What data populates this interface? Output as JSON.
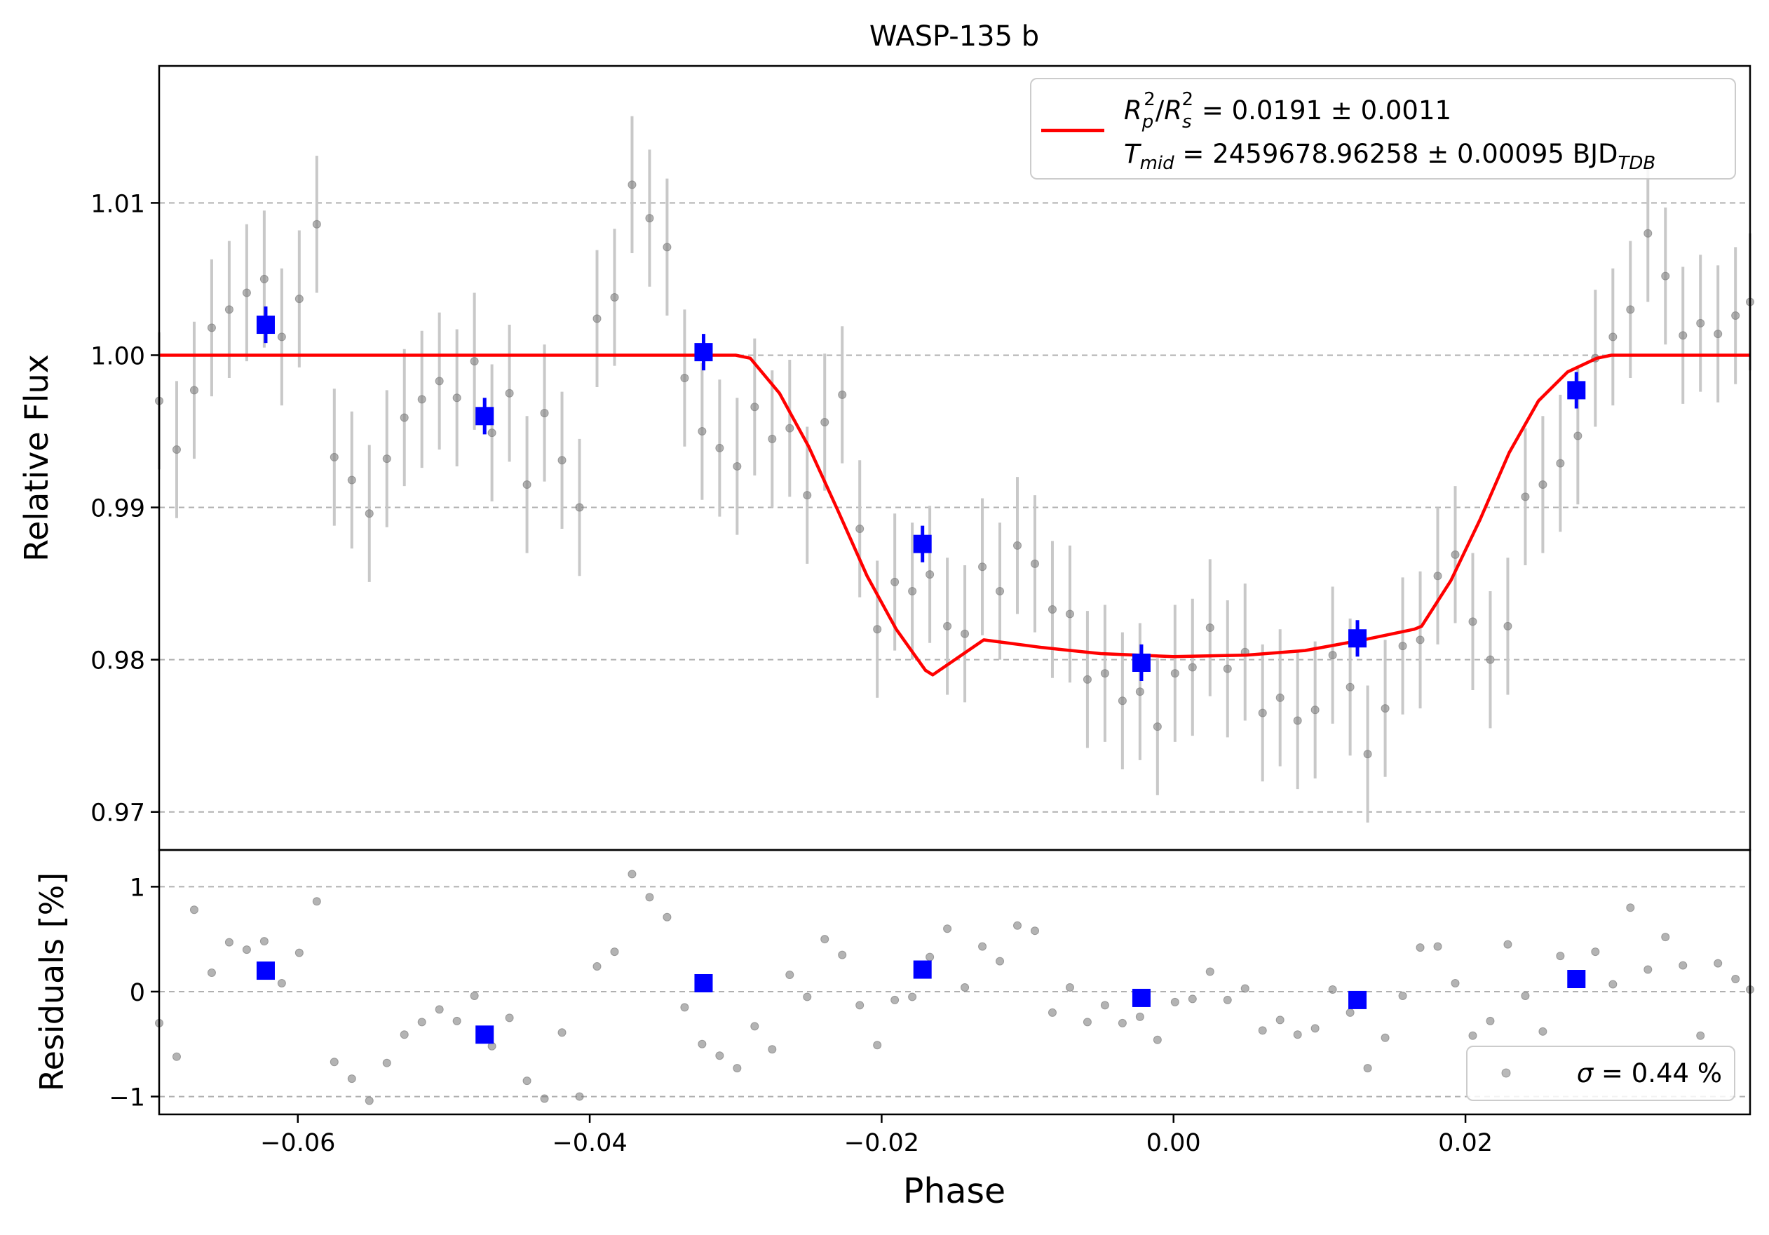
{
  "chart_data": [
    {
      "type": "scatter",
      "title": "WASP-135 b",
      "xlabel": "",
      "ylabel": "Relative Flux",
      "xlim": [
        -0.0695,
        0.0395
      ],
      "ylim": [
        0.9675,
        1.019
      ],
      "y_ticks": [
        0.97,
        0.98,
        0.99,
        1.0,
        1.01
      ],
      "y_tick_labels": [
        "0.97",
        "0.98",
        "0.99",
        "1.00",
        "1.01"
      ],
      "grid": "horizontal dashed",
      "legend": {
        "placement": "upper right",
        "line1": "R_p^2/R_s^2 = 0.0191 ± 0.0011",
        "line2": "T_mid = 2459678.96258 ± 0.00095 BJD_TDB",
        "line1_parts": {
          "a": "R",
          "a_sub": "p",
          "a_sup": "2",
          "slash": "/",
          "b": "R",
          "b_sub": "s",
          "b_sup": "2",
          "rest": " = 0.0191 ± 0.0011"
        },
        "line2_parts": {
          "a": "T",
          "a_sub": "mid",
          "rest": " = 2459678.96258 ± 0.00095 BJD",
          "unit_sub": "TDB"
        }
      },
      "series": [
        {
          "kind": "raw points with error bars",
          "color": "#808080",
          "x": [
            -0.0695,
            -0.0683,
            -0.0671,
            -0.0659,
            -0.0647,
            -0.0635,
            -0.0623,
            -0.0611,
            -0.0599,
            -0.0587,
            -0.0575,
            -0.0563,
            -0.0551,
            -0.0539,
            -0.0527,
            -0.0515,
            -0.0503,
            -0.0491,
            -0.0479,
            -0.0467,
            -0.0455,
            -0.0443,
            -0.0431,
            -0.0419,
            -0.0407,
            -0.0395,
            -0.0383,
            -0.0371,
            -0.0359,
            -0.0347,
            -0.0335,
            -0.0323,
            -0.0311,
            -0.0299,
            -0.0287,
            -0.0275,
            -0.0263,
            -0.0251,
            -0.0239,
            -0.0227,
            -0.0215,
            -0.0203,
            -0.0191,
            -0.0179,
            -0.0167,
            -0.0155,
            -0.0143,
            -0.0131,
            -0.0119,
            -0.0107,
            -0.0095,
            -0.0083,
            -0.0071,
            -0.0059,
            -0.0047,
            -0.0035,
            -0.0023,
            -0.0011,
            0.0001,
            0.0013,
            0.0025,
            0.0037,
            0.0049,
            0.0061,
            0.0073,
            0.0085,
            0.0097,
            0.0109,
            0.0121,
            0.0133,
            0.0145,
            0.0157,
            0.0169,
            0.0181,
            0.0193,
            0.0205,
            0.0217,
            0.0229,
            0.0241,
            0.0253,
            0.0265,
            0.0277,
            0.0289,
            0.0301,
            0.0313,
            0.0325,
            0.0337,
            0.0349,
            0.0361,
            0.0373,
            0.0385,
            0.0395
          ],
          "y": [
            0.997,
            0.9938,
            0.9977,
            1.0018,
            1.003,
            1.0041,
            1.005,
            1.0012,
            1.0037,
            1.0086,
            0.9933,
            0.9918,
            0.9896,
            0.9932,
            0.9959,
            0.9971,
            0.9983,
            0.9972,
            0.9996,
            0.9949,
            0.9975,
            0.9915,
            0.9962,
            0.9931,
            0.99,
            1.0024,
            1.0038,
            1.0112,
            1.009,
            1.0071,
            0.9985,
            0.995,
            0.9939,
            0.9927,
            0.9966,
            0.9945,
            0.9952,
            0.9908,
            0.9956,
            0.9974,
            0.9886,
            0.982,
            0.9851,
            0.9845,
            0.9856,
            0.9822,
            0.9817,
            0.9861,
            0.9845,
            0.9875,
            0.9863,
            0.9833,
            0.983,
            0.9787,
            0.9791,
            0.9773,
            0.9779,
            0.9756,
            0.9791,
            0.9795,
            0.9821,
            0.9794,
            0.9805,
            0.9765,
            0.9775,
            0.976,
            0.9767,
            0.9803,
            0.9782,
            0.9738,
            0.9768,
            0.9809,
            0.9813,
            0.9855,
            0.9869,
            0.9825,
            0.98,
            0.9822,
            0.9907,
            0.9915,
            0.9929,
            0.9947,
            0.9998,
            1.0012,
            1.003,
            1.008,
            1.0052,
            1.0013,
            1.0021,
            1.0014,
            1.0026,
            1.0035
          ],
          "yerr": 0.0045
        },
        {
          "kind": "binned points",
          "color": "#0000ff",
          "x": [
            -0.0622,
            -0.0472,
            -0.0322,
            -0.0172,
            -0.0022,
            0.0126,
            0.0276
          ],
          "y": [
            1.002,
            0.996,
            1.0002,
            0.9876,
            0.9798,
            0.9814,
            0.9977
          ],
          "yerr": 0.0012
        },
        {
          "kind": "transit model",
          "color": "#ff0000",
          "x": [
            -0.0695,
            -0.03,
            -0.029,
            -0.027,
            -0.025,
            -0.023,
            -0.021,
            -0.019,
            -0.017,
            -0.0165,
            -0.013,
            -0.009,
            -0.005,
            0.0,
            0.005,
            0.009,
            0.013,
            0.0165,
            0.017,
            0.019,
            0.021,
            0.023,
            0.025,
            0.027,
            0.029,
            0.03,
            0.0395
          ],
          "y": [
            1.0,
            1.0,
            0.9998,
            0.9975,
            0.994,
            0.9898,
            0.9855,
            0.982,
            0.9793,
            0.979,
            0.9813,
            0.9808,
            0.9804,
            0.9802,
            0.9803,
            0.9806,
            0.9813,
            0.982,
            0.9822,
            0.9852,
            0.9892,
            0.9936,
            0.997,
            0.9989,
            0.9998,
            1.0,
            1.0
          ]
        }
      ]
    },
    {
      "type": "scatter",
      "xlabel": "Phase",
      "ylabel": "Residuals [%]",
      "xlim": [
        -0.0695,
        0.0395
      ],
      "ylim": [
        -1.17,
        1.35
      ],
      "y_ticks": [
        -1,
        0,
        1
      ],
      "y_tick_labels": [
        "−1",
        "0",
        "1"
      ],
      "x_ticks": [
        -0.06,
        -0.04,
        -0.02,
        0.0,
        0.02
      ],
      "x_tick_labels": [
        "−0.06",
        "−0.04",
        "−0.02",
        "0.00",
        "0.02"
      ],
      "grid": "horizontal dashed",
      "legend": {
        "placement": "lower right",
        "label": "σ = 0.44 %",
        "label_parts": {
          "sym": "σ",
          "rest": " = 0.44 %"
        }
      },
      "series": [
        {
          "kind": "raw residuals",
          "color": "#808080",
          "x": [
            -0.0695,
            -0.0683,
            -0.0671,
            -0.0659,
            -0.0647,
            -0.0635,
            -0.0623,
            -0.0611,
            -0.0599,
            -0.0587,
            -0.0575,
            -0.0563,
            -0.0551,
            -0.0539,
            -0.0527,
            -0.0515,
            -0.0503,
            -0.0491,
            -0.0479,
            -0.0467,
            -0.0455,
            -0.0443,
            -0.0431,
            -0.0419,
            -0.0407,
            -0.0395,
            -0.0383,
            -0.0371,
            -0.0359,
            -0.0347,
            -0.0335,
            -0.0323,
            -0.0311,
            -0.0299,
            -0.0287,
            -0.0275,
            -0.0263,
            -0.0251,
            -0.0239,
            -0.0227,
            -0.0215,
            -0.0203,
            -0.0191,
            -0.0179,
            -0.0167,
            -0.0155,
            -0.0143,
            -0.0131,
            -0.0119,
            -0.0107,
            -0.0095,
            -0.0083,
            -0.0071,
            -0.0059,
            -0.0047,
            -0.0035,
            -0.0023,
            -0.0011,
            0.0001,
            0.0013,
            0.0025,
            0.0037,
            0.0049,
            0.0061,
            0.0073,
            0.0085,
            0.0097,
            0.0109,
            0.0121,
            0.0133,
            0.0145,
            0.0157,
            0.0169,
            0.0181,
            0.0193,
            0.0205,
            0.0217,
            0.0229,
            0.0241,
            0.0253,
            0.0265,
            0.0277,
            0.0289,
            0.0301,
            0.0313,
            0.0325,
            0.0337,
            0.0349,
            0.0361,
            0.0373,
            0.0385,
            0.0395
          ],
          "y": [
            -0.3,
            -0.62,
            0.78,
            0.18,
            0.47,
            0.4,
            0.48,
            0.08,
            0.37,
            0.86,
            -0.67,
            -0.83,
            -1.04,
            -0.68,
            -0.41,
            -0.29,
            -0.17,
            -0.28,
            -0.04,
            -0.52,
            -0.25,
            -0.85,
            -1.02,
            -0.39,
            -1.0,
            0.24,
            0.38,
            1.12,
            0.9,
            0.71,
            -0.15,
            -0.5,
            -0.61,
            -0.73,
            -0.33,
            -0.55,
            0.16,
            -0.05,
            0.5,
            0.35,
            -0.13,
            -0.51,
            -0.08,
            -0.05,
            0.33,
            0.6,
            0.04,
            0.43,
            0.29,
            0.63,
            0.58,
            -0.2,
            0.04,
            -0.29,
            -0.13,
            -0.3,
            -0.24,
            -0.46,
            -0.1,
            -0.07,
            0.19,
            -0.08,
            0.03,
            -0.37,
            -0.27,
            -0.41,
            -0.35,
            0.02,
            -0.2,
            -0.73,
            -0.44,
            -0.04,
            0.42,
            0.43,
            0.08,
            -0.42,
            -0.28,
            0.45,
            -0.04,
            -0.38,
            0.34,
            0.12,
            0.38,
            0.07,
            0.8,
            0.21,
            0.52,
            0.25,
            -0.42,
            0.27,
            0.12,
            0.02
          ]
        },
        {
          "kind": "binned residuals",
          "color": "#0000ff",
          "x": [
            -0.0622,
            -0.0472,
            -0.0322,
            -0.0172,
            -0.0022,
            0.0126,
            0.0276
          ],
          "y": [
            0.2,
            -0.41,
            0.08,
            0.21,
            -0.06,
            -0.08,
            0.12
          ]
        }
      ]
    }
  ],
  "colors": {
    "raw": "#808080",
    "errorbar": "#c8c8c8",
    "binned": "#0000ff",
    "model": "#ff0000",
    "grid": "#b0b0b0"
  }
}
